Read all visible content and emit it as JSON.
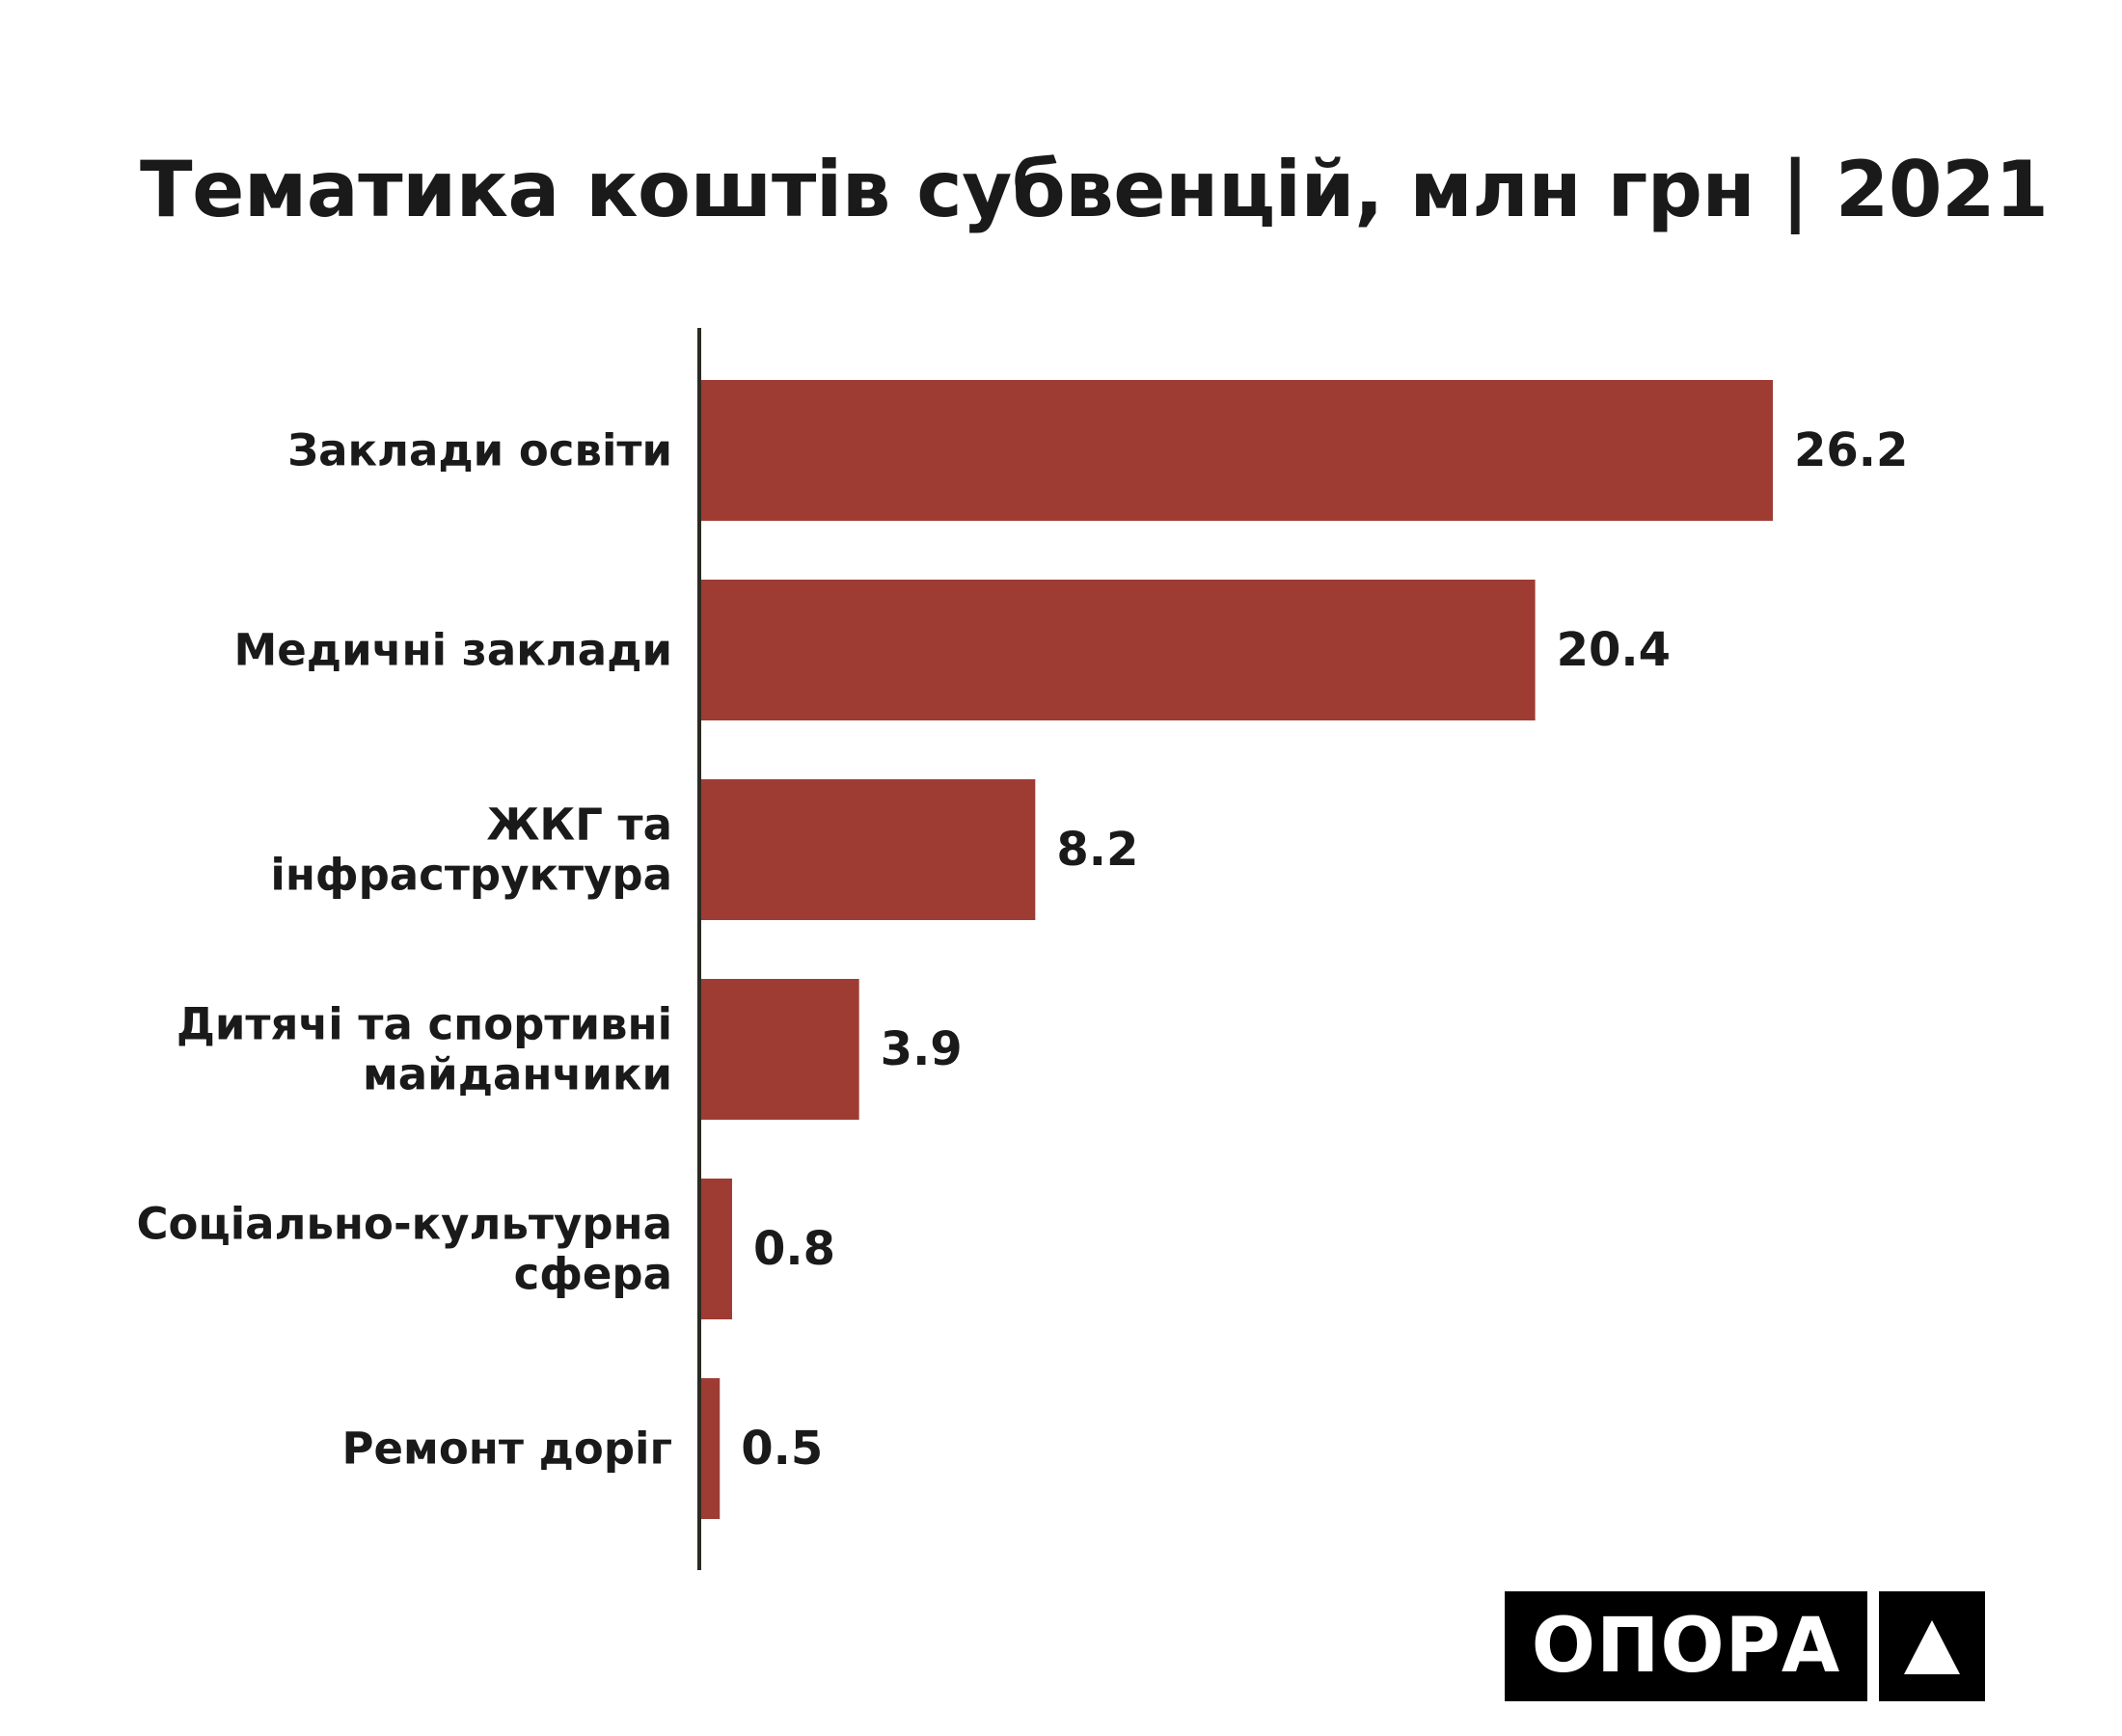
{
  "chart_data": {
    "type": "bar",
    "orientation": "horizontal",
    "title": "Тематика коштів субвенцій, млн грн | 2021",
    "categories": [
      [
        "Заклади освіти"
      ],
      [
        "Медичні заклади"
      ],
      [
        "ЖКГ та",
        "інфраструктура"
      ],
      [
        "Дитячі та спортивні",
        "майданчики"
      ],
      [
        "Соціально-культурна",
        "сфера"
      ],
      [
        "Ремонт доріг"
      ]
    ],
    "values": [
      26.2,
      20.4,
      8.2,
      3.9,
      0.8,
      0.5
    ],
    "value_labels": [
      "26.2",
      "20.4",
      "8.2",
      "3.9",
      "0.8",
      "0.5"
    ],
    "bar_color": "#9e3c34",
    "axis_color": "#2b2b22",
    "xlim": [
      0,
      26.2
    ],
    "grid": false,
    "legend": "none"
  },
  "brand": {
    "logo_text": "ОПОРА"
  }
}
